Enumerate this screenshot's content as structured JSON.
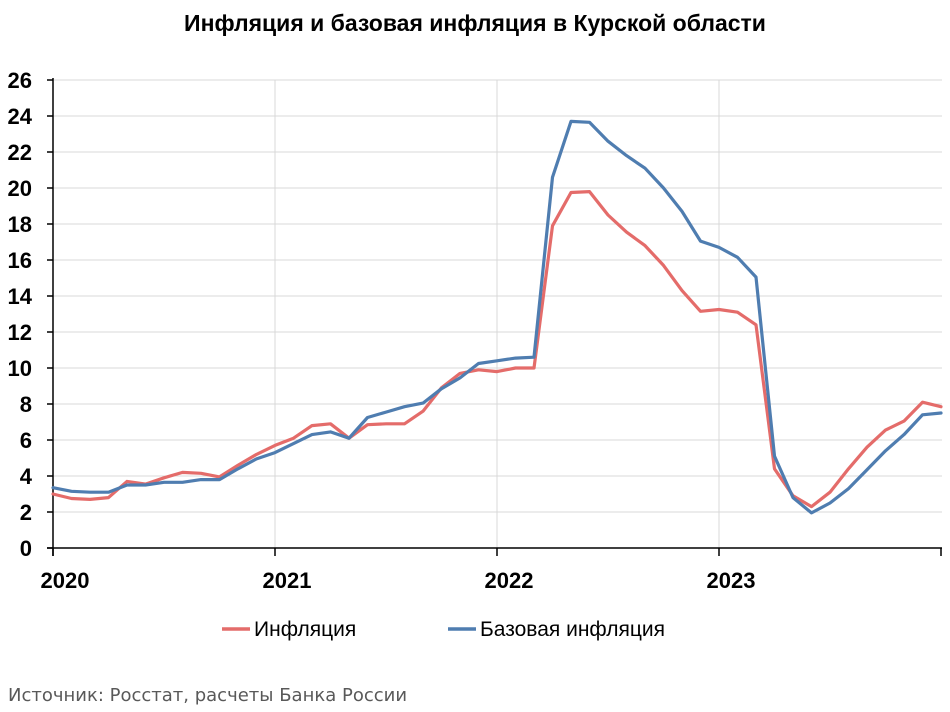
{
  "chart_data": {
    "type": "line",
    "title": "Инфляция и базовая инфляция в Курской области",
    "xlabel": "",
    "ylabel": "",
    "ylim": [
      0,
      26
    ],
    "yticks": [
      0,
      2,
      4,
      6,
      8,
      10,
      12,
      14,
      16,
      18,
      20,
      22,
      24,
      26
    ],
    "x_tick_labels": [
      "2020",
      "2021",
      "2022",
      "2023"
    ],
    "x_start": "2020-01",
    "x_frequency": "monthly",
    "grid": true,
    "legend_position": "bottom",
    "series": [
      {
        "name": "Инфляция",
        "color": "#E46C6A",
        "values": [
          3.0,
          2.75,
          2.7,
          2.8,
          3.7,
          3.55,
          3.9,
          4.2,
          4.15,
          3.95,
          4.6,
          5.2,
          5.7,
          6.1,
          6.8,
          6.9,
          6.1,
          6.85,
          6.9,
          6.9,
          7.6,
          8.9,
          9.7,
          9.9,
          9.8,
          10.0,
          10.0,
          17.9,
          19.75,
          19.8,
          18.5,
          17.55,
          16.8,
          15.7,
          14.3,
          13.15,
          13.25,
          13.1,
          12.4,
          4.4,
          2.9,
          2.3,
          3.1,
          4.4,
          5.6,
          6.55,
          7.05,
          8.1,
          7.85
        ]
      },
      {
        "name": "Базовая инфляция",
        "color": "#4F7DB0",
        "values": [
          3.35,
          3.15,
          3.1,
          3.1,
          3.5,
          3.5,
          3.65,
          3.65,
          3.8,
          3.8,
          4.4,
          4.95,
          5.3,
          5.8,
          6.3,
          6.45,
          6.1,
          7.25,
          7.55,
          7.85,
          8.05,
          8.85,
          9.45,
          10.25,
          10.4,
          10.55,
          10.6,
          20.6,
          23.7,
          23.65,
          22.6,
          21.8,
          21.1,
          20.0,
          18.7,
          17.05,
          16.7,
          16.15,
          15.05,
          5.1,
          2.8,
          1.95,
          2.5,
          3.3,
          4.35,
          5.4,
          6.3,
          7.4,
          7.5
        ]
      }
    ]
  },
  "source": "Источник: Росстат, расчеты Банка России"
}
